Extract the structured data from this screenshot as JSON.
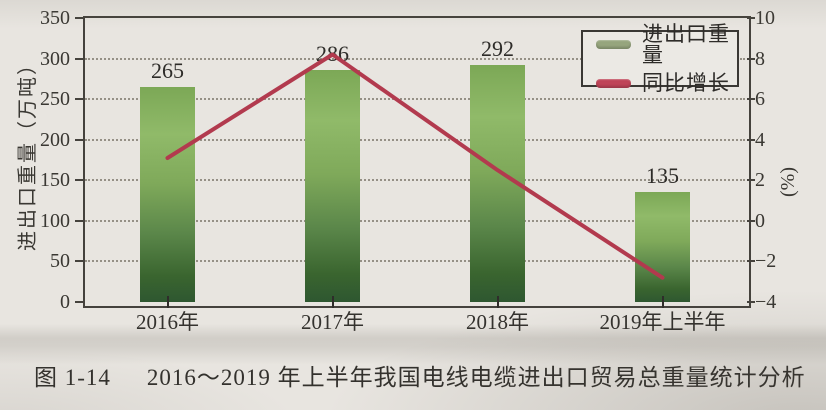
{
  "figure": {
    "caption_label": "图 1-14",
    "caption_text": "2016～2019 年上半年我国电线电缆进出口贸易总重量统计分析"
  },
  "chart_data": {
    "type": "bar",
    "combo": "bar+line",
    "categories": [
      "2016年",
      "2017年",
      "2018年",
      "2019年上半年"
    ],
    "series": [
      {
        "name": "进出口重量",
        "type": "bar",
        "axis": "left",
        "unit": "万吨",
        "values": [
          265,
          286,
          292,
          135
        ],
        "color": "#7fa95a"
      },
      {
        "name": "同比增长",
        "type": "line",
        "axis": "right",
        "unit": "%",
        "values": [
          3.1,
          8.2,
          2.5,
          -2.8
        ],
        "color": "#b23a4e"
      }
    ],
    "bar_value_labels": [
      "265",
      "286",
      "292",
      "135"
    ],
    "left_axis": {
      "label": "进出口重量（万吨）",
      "min": 0,
      "max": 350,
      "step": 50,
      "ticks": [
        0,
        50,
        100,
        150,
        200,
        250,
        300,
        350
      ]
    },
    "right_axis": {
      "label": "(%)",
      "min": -4,
      "max": 10,
      "step": 2,
      "ticks": [
        -4,
        -2,
        0,
        2,
        4,
        6,
        8,
        10
      ]
    },
    "legend": {
      "position": "top-right",
      "entries": [
        {
          "label": "进出口重量",
          "swatch": "#96a57d"
        },
        {
          "label": "同比增长",
          "swatch": "#bf4458"
        }
      ]
    },
    "grid": {
      "horizontal": "dotted",
      "vertical": "none"
    },
    "bar_gradient": [
      "#7ca856",
      "#90ba69",
      "#7fa95a",
      "#5b874a",
      "#3a652f",
      "#2e5730"
    ]
  }
}
